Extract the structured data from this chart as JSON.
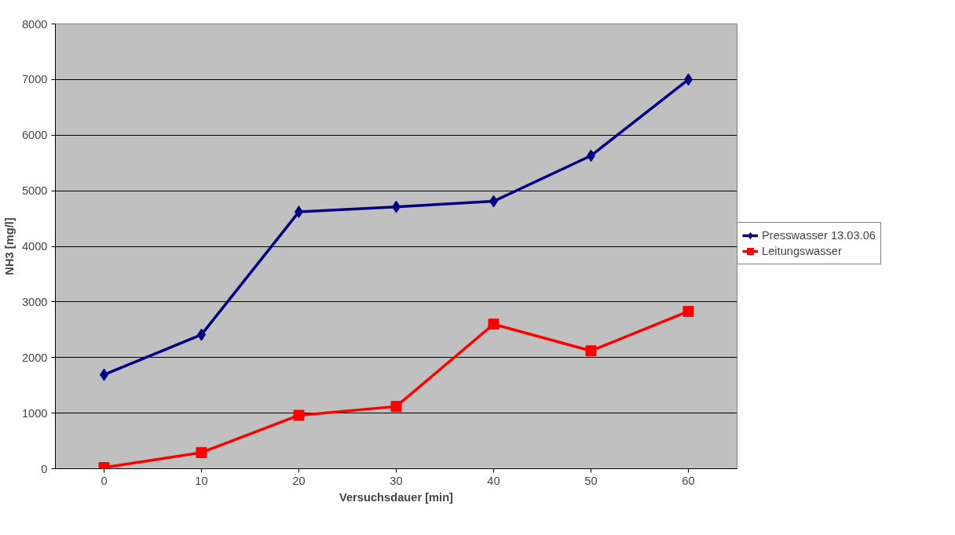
{
  "chart_data": {
    "type": "line",
    "xlabel": "Versuchsdauer [min]",
    "ylabel": "NH3 [mg/l]",
    "categories": [
      "0",
      "10",
      "20",
      "30",
      "40",
      "50",
      "60"
    ],
    "series": [
      {
        "name": "Presswasser 13.03.06",
        "color": "#000080",
        "marker": "diamond",
        "values": [
          1690,
          2410,
          4620,
          4710,
          4810,
          5630,
          7000
        ]
      },
      {
        "name": "Leitungswasser",
        "color": "#ff0000",
        "marker": "square",
        "values": [
          20,
          290,
          960,
          1120,
          2600,
          2120,
          2830
        ]
      }
    ],
    "ylim": [
      0,
      8000
    ],
    "yticks": [
      0,
      1000,
      2000,
      3000,
      4000,
      5000,
      6000,
      7000,
      8000
    ],
    "grid": "y",
    "legend": "right",
    "line_style": "solid"
  }
}
